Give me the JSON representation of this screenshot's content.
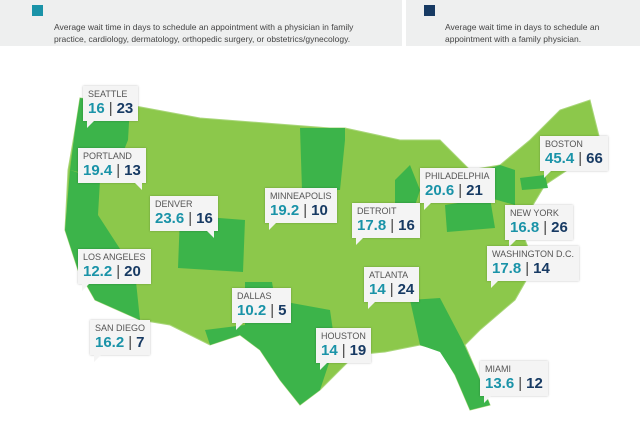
{
  "legend": [
    {
      "color": "#1a93a8",
      "text": "Average wait time in days to schedule an appointment  with  a physician in family practice, cardiology, dermatology,  orthopedic surgery, or obstetrics/gynecology."
    },
    {
      "color": "#173a63",
      "text": "Average wait time in days to schedule an appointment with a family physician."
    }
  ],
  "colors": {
    "light_green": "#8cc84b",
    "dark_green": "#3cb44a",
    "teal": "#1a93a8",
    "navy": "#173a63"
  },
  "separator": "|",
  "cities": [
    {
      "name": "SEATTLE",
      "all": "16",
      "family": "23"
    },
    {
      "name": "PORTLAND",
      "all": "19.4",
      "family": "13"
    },
    {
      "name": "DENVER",
      "all": "23.6",
      "family": "16"
    },
    {
      "name": "LOS ANGELES",
      "all": "12.2",
      "family": "20"
    },
    {
      "name": "SAN DIEGO",
      "all": "16.2",
      "family": "7"
    },
    {
      "name": "DALLAS",
      "all": "10.2",
      "family": "5"
    },
    {
      "name": "MINNEAPOLIS",
      "all": "19.2",
      "family": "10"
    },
    {
      "name": "HOUSTON",
      "all": "14",
      "family": "19"
    },
    {
      "name": "DETROIT",
      "all": "17.8",
      "family": "16"
    },
    {
      "name": "ATLANTA",
      "all": "14",
      "family": "24"
    },
    {
      "name": "PHILADELPHIA",
      "all": "20.6",
      "family": "21"
    },
    {
      "name": "BOSTON",
      "all": "45.4",
      "family": "66"
    },
    {
      "name": "NEW YORK",
      "all": "16.8",
      "family": "26"
    },
    {
      "name": "WASHINGTON D.C.",
      "all": "17.8",
      "family": "14"
    },
    {
      "name": "MIAMI",
      "all": "13.6",
      "family": "12"
    }
  ]
}
